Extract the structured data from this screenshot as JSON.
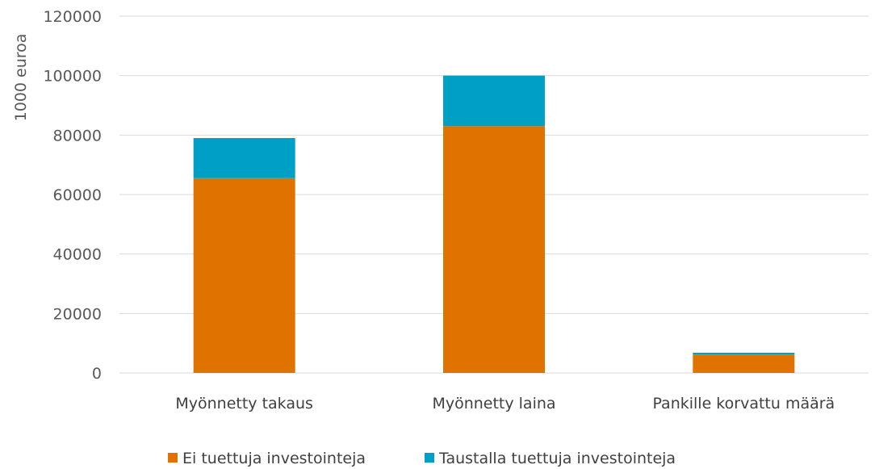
{
  "chart_data": {
    "type": "bar",
    "stacked": true,
    "title": "",
    "ylabel": "1000 euroa",
    "xlabel": "",
    "ylim": [
      0,
      120000
    ],
    "yticks": [
      0,
      20000,
      40000,
      60000,
      80000,
      100000,
      120000
    ],
    "grid": true,
    "legend_position": "bottom",
    "categories": [
      "Myönnetty takaus",
      "Myönnetty laina",
      "Pankille korvattu määrä"
    ],
    "series": [
      {
        "name": "Ei tuettuja investointeja",
        "color": "#E07200",
        "values": [
          65500,
          83000,
          6200
        ]
      },
      {
        "name": "Taustalla tuettuja investointeja",
        "color": "#00A0C6",
        "values": [
          13500,
          17000,
          600
        ]
      }
    ]
  }
}
